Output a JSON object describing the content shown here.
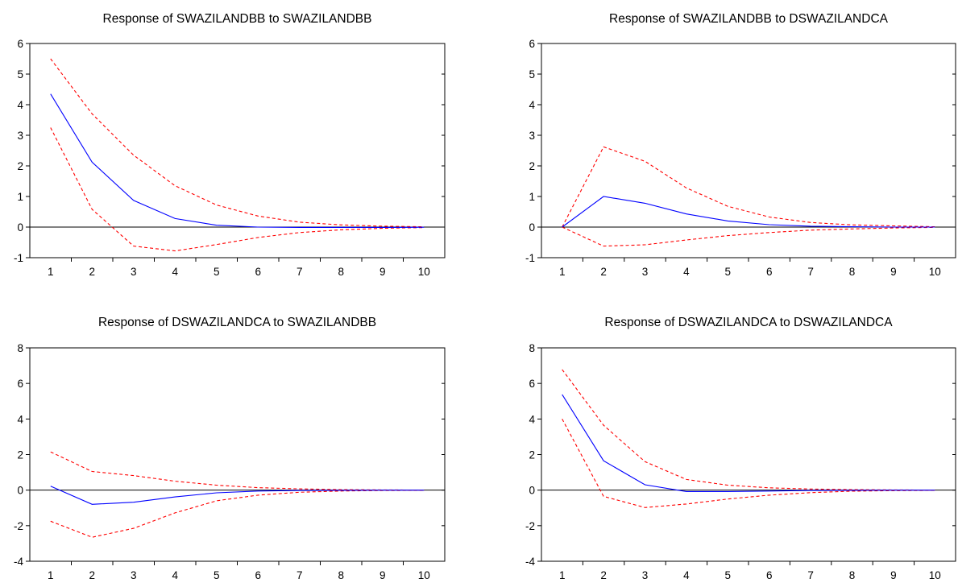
{
  "chart_data": [
    {
      "type": "line",
      "title": "Response of SWAZILANDBB to SWAZILANDBB",
      "x": [
        1,
        2,
        3,
        4,
        5,
        6,
        7,
        8,
        9,
        10
      ],
      "xlim": [
        1,
        10
      ],
      "ylim": [
        -1,
        6
      ],
      "yticks": [
        -1,
        0,
        1,
        2,
        3,
        4,
        5,
        6
      ],
      "zero_line": true,
      "grid": false,
      "series": [
        {
          "style": "solid",
          "color": "#0000ff",
          "values": [
            4.35,
            2.12,
            0.87,
            0.28,
            0.06,
            0.0,
            -0.01,
            -0.01,
            -0.01,
            -0.005
          ]
        },
        {
          "style": "dashed",
          "color": "#ff0000",
          "values": [
            5.5,
            3.7,
            2.35,
            1.35,
            0.72,
            0.36,
            0.16,
            0.07,
            0.03,
            0.01
          ]
        },
        {
          "style": "dashed",
          "color": "#ff0000",
          "values": [
            3.25,
            0.58,
            -0.62,
            -0.78,
            -0.57,
            -0.34,
            -0.18,
            -0.09,
            -0.04,
            -0.015
          ]
        }
      ]
    },
    {
      "type": "line",
      "title": "Response of SWAZILANDBB to DSWAZILANDCA",
      "x": [
        1,
        2,
        3,
        4,
        5,
        6,
        7,
        8,
        9,
        10
      ],
      "xlim": [
        1,
        10
      ],
      "ylim": [
        -1,
        6
      ],
      "yticks": [
        -1,
        0,
        1,
        2,
        3,
        4,
        5,
        6
      ],
      "zero_line": true,
      "grid": false,
      "series": [
        {
          "style": "solid",
          "color": "#0000ff",
          "values": [
            0.0,
            1.0,
            0.78,
            0.43,
            0.2,
            0.08,
            0.03,
            0.01,
            0.0,
            0.0
          ]
        },
        {
          "style": "dashed",
          "color": "#ff0000",
          "values": [
            0.0,
            2.62,
            2.15,
            1.28,
            0.68,
            0.33,
            0.15,
            0.07,
            0.04,
            0.01
          ]
        },
        {
          "style": "dashed",
          "color": "#ff0000",
          "values": [
            0.0,
            -0.62,
            -0.58,
            -0.42,
            -0.28,
            -0.18,
            -0.1,
            -0.06,
            -0.03,
            -0.01
          ]
        }
      ]
    },
    {
      "type": "line",
      "title": "Response of DSWAZILANDCA to SWAZILANDBB",
      "x": [
        1,
        2,
        3,
        4,
        5,
        6,
        7,
        8,
        9,
        10
      ],
      "xlim": [
        1,
        10
      ],
      "ylim": [
        -4,
        8
      ],
      "yticks": [
        -4,
        -2,
        0,
        2,
        4,
        6,
        8
      ],
      "zero_line": true,
      "grid": false,
      "series": [
        {
          "style": "solid",
          "color": "#0000ff",
          "values": [
            0.22,
            -0.8,
            -0.68,
            -0.38,
            -0.15,
            -0.05,
            -0.02,
            -0.01,
            0.0,
            0.0
          ]
        },
        {
          "style": "dashed",
          "color": "#ff0000",
          "values": [
            2.15,
            1.05,
            0.82,
            0.5,
            0.28,
            0.14,
            0.07,
            0.03,
            0.01,
            0.005
          ]
        },
        {
          "style": "dashed",
          "color": "#ff0000",
          "values": [
            -1.75,
            -2.65,
            -2.15,
            -1.28,
            -0.6,
            -0.28,
            -0.12,
            -0.05,
            -0.02,
            -0.01
          ]
        }
      ]
    },
    {
      "type": "line",
      "title": "Response of DSWAZILANDCA to DSWAZILANDCA",
      "x": [
        1,
        2,
        3,
        4,
        5,
        6,
        7,
        8,
        9,
        10
      ],
      "xlim": [
        1,
        10
      ],
      "ylim": [
        -4,
        8
      ],
      "yticks": [
        -4,
        -2,
        0,
        2,
        4,
        6,
        8
      ],
      "zero_line": true,
      "grid": false,
      "series": [
        {
          "style": "solid",
          "color": "#0000ff",
          "values": [
            5.38,
            1.65,
            0.3,
            -0.08,
            -0.08,
            -0.05,
            -0.02,
            -0.01,
            0.0,
            0.0
          ]
        },
        {
          "style": "dashed",
          "color": "#ff0000",
          "values": [
            6.78,
            3.65,
            1.6,
            0.6,
            0.28,
            0.13,
            0.06,
            0.03,
            0.01,
            0.005
          ]
        },
        {
          "style": "dashed",
          "color": "#ff0000",
          "values": [
            4.0,
            -0.35,
            -0.98,
            -0.78,
            -0.5,
            -0.28,
            -0.14,
            -0.06,
            -0.03,
            -0.01
          ]
        }
      ]
    }
  ]
}
